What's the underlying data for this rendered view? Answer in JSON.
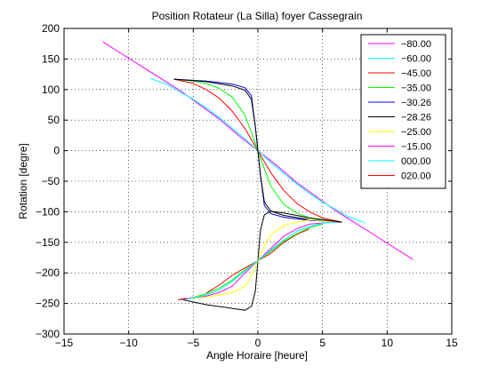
{
  "chart_data": {
    "type": "line",
    "title": "Position Rotateur (La Silla) foyer Cassegrain",
    "xlabel": "Angle Horaire [heure]",
    "ylabel": "Rotation [degre]",
    "xlim": [
      -15,
      15
    ],
    "ylim": [
      -300,
      200
    ],
    "xticks": [
      -15,
      -10,
      -5,
      0,
      5,
      10,
      15
    ],
    "yticks": [
      -300,
      -250,
      -200,
      -150,
      -100,
      -50,
      0,
      50,
      100,
      150,
      200
    ],
    "xtick_labels": [
      "−15",
      "−10",
      "−5",
      "0",
      "5",
      "10",
      "15"
    ],
    "ytick_labels": [
      "−300",
      "−250",
      "−200",
      "−150",
      "−100",
      "−50",
      "0",
      "50",
      "100",
      "150",
      "200"
    ],
    "grid": true,
    "legend_position": "top-right",
    "series": [
      {
        "name": "−80.00",
        "color": "#ff00ff",
        "segments": [
          [
            [
              -12,
              178
            ],
            [
              -9,
              138
            ],
            [
              -6,
              98
            ],
            [
              -3,
              52
            ],
            [
              -1.5,
              25
            ],
            [
              0,
              0
            ],
            [
              1.5,
              -25
            ],
            [
              3,
              -52
            ],
            [
              6,
              -98
            ],
            [
              9,
              -138
            ],
            [
              12,
              -178
            ]
          ]
        ]
      },
      {
        "name": "−60.00",
        "color": "#00ffff",
        "segments": [
          [
            [
              -8.3,
              118
            ],
            [
              -7,
              108
            ],
            [
              -6,
              96
            ],
            [
              -5,
              84
            ],
            [
              -4,
              70
            ],
            [
              -3,
              54
            ],
            [
              -2,
              37
            ],
            [
              -1,
              19
            ],
            [
              0,
              0
            ],
            [
              1,
              -19
            ],
            [
              2,
              -37
            ],
            [
              3,
              -54
            ],
            [
              4,
              -70
            ],
            [
              5,
              -84
            ],
            [
              6,
              -96
            ],
            [
              7,
              -108
            ],
            [
              8.3,
              -118
            ]
          ]
        ]
      },
      {
        "name": "−45.00",
        "color": "#ff0000",
        "segments": [
          [
            [
              -6.5,
              117
            ],
            [
              -5,
              110
            ],
            [
              -4,
              100
            ],
            [
              -3,
              86
            ],
            [
              -2,
              65
            ],
            [
              -1,
              36
            ],
            [
              0,
              0
            ],
            [
              1,
              -36
            ],
            [
              2,
              -65
            ],
            [
              3,
              -86
            ],
            [
              4,
              -100
            ],
            [
              5,
              -110
            ],
            [
              6.5,
              -117
            ]
          ],
          [
            [
              -4,
              -233
            ],
            [
              -3,
              -220
            ],
            [
              -2,
              -204
            ],
            [
              -1,
              -192
            ],
            [
              0,
              -180
            ],
            [
              1,
              -168
            ],
            [
              2,
              -150
            ],
            [
              3,
              -137
            ],
            [
              4,
              -128
            ]
          ]
        ]
      },
      {
        "name": "−35.00",
        "color": "#00ff00",
        "segments": [
          [
            [
              -6.5,
              117
            ],
            [
              -5,
              114
            ],
            [
              -4,
              110
            ],
            [
              -3,
              102
            ],
            [
              -2,
              88
            ],
            [
              -1,
              58
            ],
            [
              -0.5,
              30
            ],
            [
              0,
              0
            ],
            [
              0.5,
              -30
            ],
            [
              1,
              -58
            ],
            [
              2,
              -88
            ],
            [
              3,
              -102
            ],
            [
              4,
              -110
            ],
            [
              5,
              -114
            ],
            [
              6.5,
              -117
            ]
          ],
          [
            [
              -5,
              -240
            ],
            [
              -4,
              -234
            ],
            [
              -3,
              -225
            ],
            [
              -2,
              -212
            ],
            [
              -1,
              -195
            ],
            [
              0,
              -180
            ],
            [
              1,
              -165
            ],
            [
              2,
              -148
            ],
            [
              3,
              -136
            ],
            [
              4,
              -126
            ],
            [
              5,
              -120
            ]
          ]
        ]
      },
      {
        "name": "−30.26",
        "color": "#0000ff",
        "segments": [
          [
            [
              -6.5,
              117
            ],
            [
              -4,
              114
            ],
            [
              -2,
              109
            ],
            [
              -1,
              103
            ],
            [
              -0.5,
              90
            ],
            [
              -0.2,
              40
            ],
            [
              0,
              0
            ],
            [
              0.2,
              -40
            ],
            [
              0.5,
              -90
            ],
            [
              1,
              -103
            ],
            [
              2,
              -109
            ],
            [
              4,
              -114
            ],
            [
              6.5,
              -117
            ]
          ]
        ]
      },
      {
        "name": "−28.26",
        "color": "#000000",
        "segments": [
          [
            [
              -6.5,
              117
            ],
            [
              -4,
              113
            ],
            [
              -2,
              106
            ],
            [
              -1,
              99
            ],
            [
              -0.5,
              84
            ],
            [
              -0.2,
              40
            ],
            [
              0,
              0
            ],
            [
              0.2,
              -40
            ],
            [
              0.5,
              -84
            ],
            [
              1,
              -99
            ],
            [
              2,
              -106
            ],
            [
              4,
              -113
            ],
            [
              6.5,
              -117
            ]
          ],
          [
            [
              -6,
              -243
            ],
            [
              -4,
              -252
            ],
            [
              -2,
              -258
            ],
            [
              -1,
              -261
            ],
            [
              -0.5,
              -255
            ],
            [
              -0.2,
              -230
            ],
            [
              0,
              -180
            ],
            [
              0.2,
              -130
            ],
            [
              0.5,
              -105
            ],
            [
              1,
              -99
            ],
            [
              2,
              -102
            ],
            [
              4,
              -110
            ],
            [
              6.5,
              -117
            ]
          ]
        ]
      },
      {
        "name": "−25.00",
        "color": "#ffff00",
        "segments": [
          [
            [
              -6,
              -243
            ],
            [
              -4,
              -240
            ],
            [
              -2,
              -232
            ],
            [
              -1,
              -222
            ],
            [
              -0.5,
              -205
            ],
            [
              0,
              -180
            ],
            [
              0.5,
              -155
            ],
            [
              1,
              -138
            ],
            [
              2,
              -122
            ],
            [
              4,
              -113
            ],
            [
              6,
              -117
            ]
          ]
        ]
      },
      {
        "name": "−15.00",
        "color": "#ff00ff",
        "segments": [
          [
            [
              -6,
              -243
            ],
            [
              -4,
              -238
            ],
            [
              -3,
              -232
            ],
            [
              -2,
              -222
            ],
            [
              -1,
              -200
            ],
            [
              0,
              -180
            ],
            [
              1,
              -160
            ],
            [
              2,
              -140
            ],
            [
              3,
              -128
            ],
            [
              4,
              -120
            ],
            [
              6,
              -117
            ]
          ]
        ]
      },
      {
        "name": "000.00",
        "color": "#00ffff",
        "segments": [
          [
            [
              -6,
              -244
            ],
            [
              -5,
              -241
            ],
            [
              -4,
              -236
            ],
            [
              -3,
              -228
            ],
            [
              -2,
              -214
            ],
            [
              -1,
              -197
            ],
            [
              0,
              -180
            ],
            [
              1,
              -163
            ],
            [
              2,
              -146
            ],
            [
              3,
              -132
            ],
            [
              4,
              -124
            ],
            [
              5,
              -119
            ],
            [
              6,
              -117
            ]
          ]
        ]
      },
      {
        "name": "020.00",
        "color": "#ff0000",
        "segments": [
          [
            [
              -6.2,
              -244
            ],
            [
              -5.5,
              -242
            ]
          ]
        ]
      }
    ]
  }
}
